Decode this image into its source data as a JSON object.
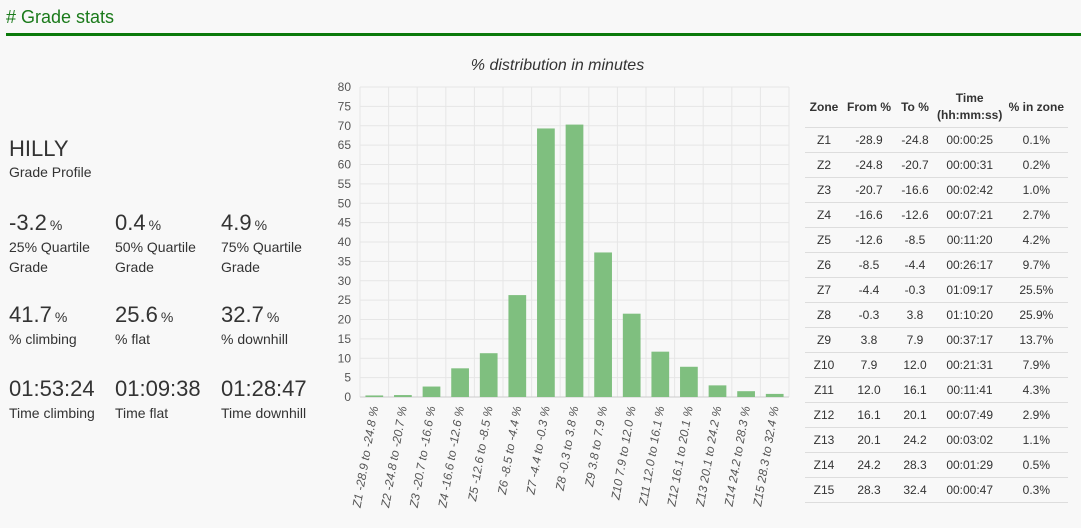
{
  "section": {
    "title": "# Grade stats"
  },
  "profile": {
    "value": "HILLY",
    "label": "Grade Profile"
  },
  "quartiles": [
    {
      "value": "-3.2",
      "unit": "%",
      "label": "25% Quartile Grade"
    },
    {
      "value": "0.4",
      "unit": "%",
      "label": "50% Quartile Grade"
    },
    {
      "value": "4.9",
      "unit": "%",
      "label": "75% Quartile Grade"
    }
  ],
  "percentages": [
    {
      "value": "41.7",
      "unit": "%",
      "label": "% climbing"
    },
    {
      "value": "25.6",
      "unit": "%",
      "label": "% flat"
    },
    {
      "value": "32.7",
      "unit": "%",
      "label": "% downhill"
    }
  ],
  "times": [
    {
      "value": "01:53:24",
      "label": "Time climbing"
    },
    {
      "value": "01:09:38",
      "label": "Time flat"
    },
    {
      "value": "01:28:47",
      "label": "Time downhill"
    }
  ],
  "chart_data": {
    "type": "bar",
    "title": "% distribution in minutes",
    "xlabel": "",
    "ylabel": "",
    "ylim": [
      0,
      80
    ],
    "yticks": [
      "0",
      "5",
      "10",
      "15",
      "20",
      "25",
      "30",
      "35",
      "40",
      "45",
      "50",
      "55",
      "60",
      "65",
      "70",
      "75",
      "80"
    ],
    "grid": true,
    "bar_color": "#7fbf7f",
    "categories": [
      "Z1 -28.9 to -24.8 %",
      "Z2 -24.8 to -20.7 %",
      "Z3 -20.7 to -16.6 %",
      "Z4 -16.6 to -12.6 %",
      "Z5 -12.6 to -8.5 %",
      "Z6 -8.5 to -4.4 %",
      "Z7 -4.4 to -0.3 %",
      "Z8 -0.3 to 3.8 %",
      "Z9 3.8 to 7.9 %",
      "Z10 7.9 to 12.0 %",
      "Z11 12.0 to 16.1 %",
      "Z12 16.1 to 20.1 %",
      "Z13 20.1 to 24.2 %",
      "Z14 24.2 to 28.3 %",
      "Z15 28.3 to 32.4 %"
    ],
    "values": [
      0.4,
      0.5,
      2.7,
      7.4,
      11.3,
      26.3,
      69.3,
      70.3,
      37.3,
      21.5,
      11.7,
      7.8,
      3.0,
      1.5,
      0.8
    ]
  },
  "zone_table": {
    "headers": [
      "Zone",
      "From %",
      "To %",
      "Time (hh:mm:ss)",
      "% in zone"
    ],
    "rows": [
      [
        "Z1",
        "-28.9",
        "-24.8",
        "00:00:25",
        "0.1%"
      ],
      [
        "Z2",
        "-24.8",
        "-20.7",
        "00:00:31",
        "0.2%"
      ],
      [
        "Z3",
        "-20.7",
        "-16.6",
        "00:02:42",
        "1.0%"
      ],
      [
        "Z4",
        "-16.6",
        "-12.6",
        "00:07:21",
        "2.7%"
      ],
      [
        "Z5",
        "-12.6",
        "-8.5",
        "00:11:20",
        "4.2%"
      ],
      [
        "Z6",
        "-8.5",
        "-4.4",
        "00:26:17",
        "9.7%"
      ],
      [
        "Z7",
        "-4.4",
        "-0.3",
        "01:09:17",
        "25.5%"
      ],
      [
        "Z8",
        "-0.3",
        "3.8",
        "01:10:20",
        "25.9%"
      ],
      [
        "Z9",
        "3.8",
        "7.9",
        "00:37:17",
        "13.7%"
      ],
      [
        "Z10",
        "7.9",
        "12.0",
        "00:21:31",
        "7.9%"
      ],
      [
        "Z11",
        "12.0",
        "16.1",
        "00:11:41",
        "4.3%"
      ],
      [
        "Z12",
        "16.1",
        "20.1",
        "00:07:49",
        "2.9%"
      ],
      [
        "Z13",
        "20.1",
        "24.2",
        "00:03:02",
        "1.1%"
      ],
      [
        "Z14",
        "24.2",
        "28.3",
        "00:01:29",
        "0.5%"
      ],
      [
        "Z15",
        "28.3",
        "32.4",
        "00:00:47",
        "0.3%"
      ]
    ]
  }
}
